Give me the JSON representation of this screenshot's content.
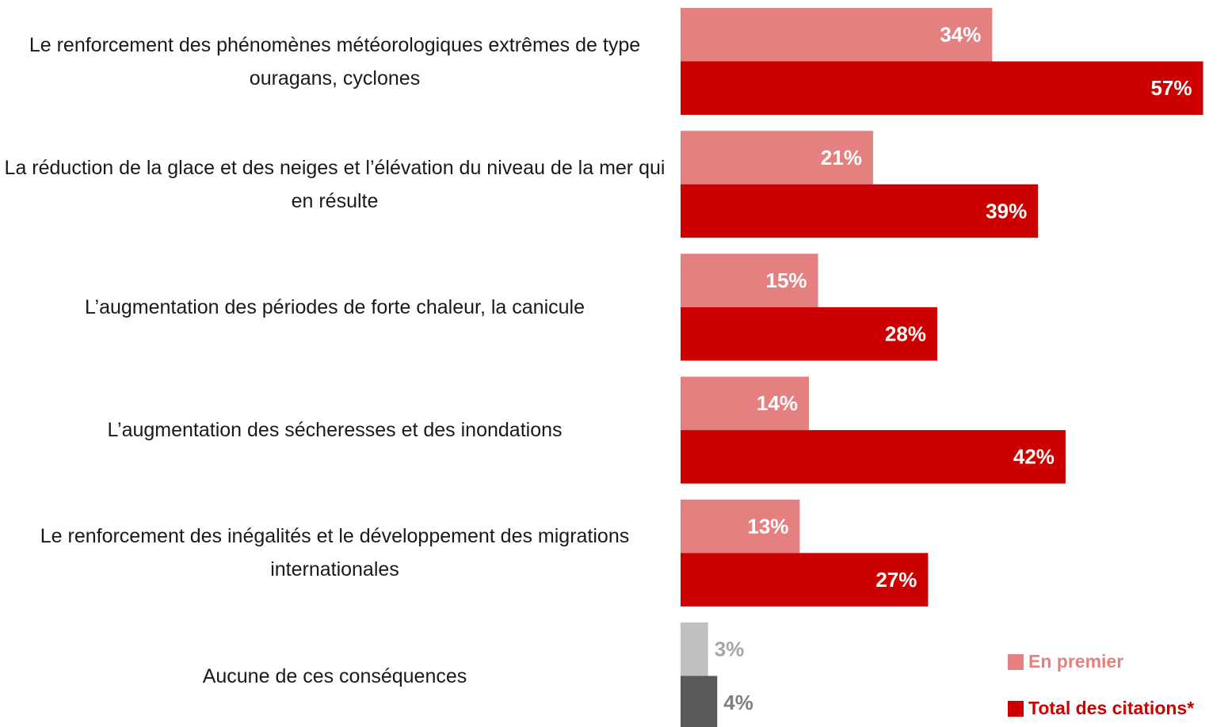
{
  "chart_data": {
    "type": "bar",
    "orientation": "horizontal",
    "categories": [
      "Le renforcement des phénomènes météorologiques extrêmes de type ouragans, cyclones",
      "La réduction de la glace et des neiges et l’élévation du niveau de la mer qui en résulte",
      "L’augmentation des périodes de forte chaleur, la canicule",
      "L’augmentation des sécheresses et des inondations",
      "Le renforcement des inégalités et le développement des migrations internationales",
      "Aucune de ces conséquences"
    ],
    "series": [
      {
        "name": "En premier",
        "color": "#e58080",
        "colors": [
          "#e58080",
          "#e58080",
          "#e58080",
          "#e58080",
          "#e58080",
          "#c0c0c0"
        ],
        "values": [
          34,
          21,
          15,
          14,
          13,
          3
        ],
        "value_labels": [
          "34%",
          "21%",
          "15%",
          "14%",
          "13%",
          "3%"
        ]
      },
      {
        "name": "Total des citations*",
        "color": "#cc0000",
        "colors": [
          "#cc0000",
          "#cc0000",
          "#cc0000",
          "#cc0000",
          "#cc0000",
          "#595959"
        ],
        "values": [
          57,
          39,
          28,
          42,
          27,
          4
        ],
        "value_labels": [
          "57%",
          "39%",
          "28%",
          "42%",
          "27%",
          "4%"
        ]
      }
    ],
    "legend": "bottom-right"
  }
}
